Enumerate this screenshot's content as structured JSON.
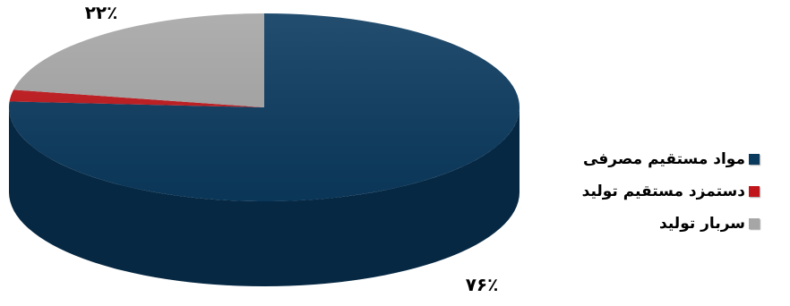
{
  "chart_data": {
    "type": "pie",
    "style": "3d",
    "title": "",
    "categories": [
      "مواد مستقیم مصرفی",
      "دستمزد مستقیم تولید",
      "سربار تولید"
    ],
    "values": [
      76,
      2,
      22
    ],
    "data_labels": [
      "۷۶٪",
      "",
      "۲۲٪"
    ],
    "colors": [
      "#0b3a5f",
      "#c0161b",
      "#a6a6a6"
    ],
    "side_colors": [
      "#062843",
      "#7d0d10",
      "#6f6f6f"
    ],
    "legend_position": "right"
  }
}
